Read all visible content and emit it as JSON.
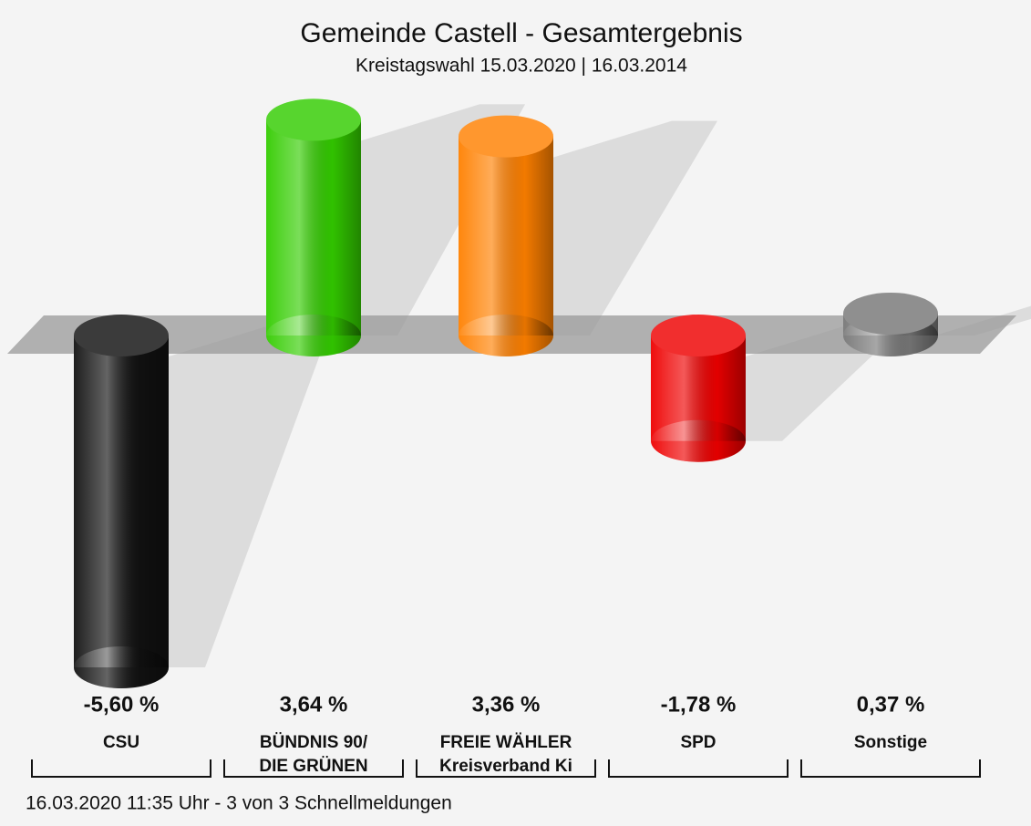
{
  "chart_data": {
    "type": "bar3d",
    "title": "Gemeinde Castell - Gesamtergebnis",
    "subtitle": "Kreistagswahl 15.03.2020  | 16.03.2014",
    "categories": [
      [
        "CSU"
      ],
      [
        "BÜNDNIS 90/",
        "DIE GRÜNEN"
      ],
      [
        "FREIE WÄHLER",
        "Kreisverband Ki"
      ],
      [
        "SPD"
      ],
      [
        "Sonstige"
      ]
    ],
    "values": [
      -5.6,
      3.64,
      3.36,
      -1.78,
      0.37
    ],
    "value_labels": [
      "-5,60 %",
      "3,64 %",
      "3,36 %",
      "-1,78 %",
      "0,37 %"
    ],
    "colors": [
      "#111111",
      "#33cc00",
      "#ff8000",
      "#ee0000",
      "#777777"
    ],
    "footer": "16.03.2020 11:35 Uhr - 3 von 3 Schnellmeldungen"
  }
}
